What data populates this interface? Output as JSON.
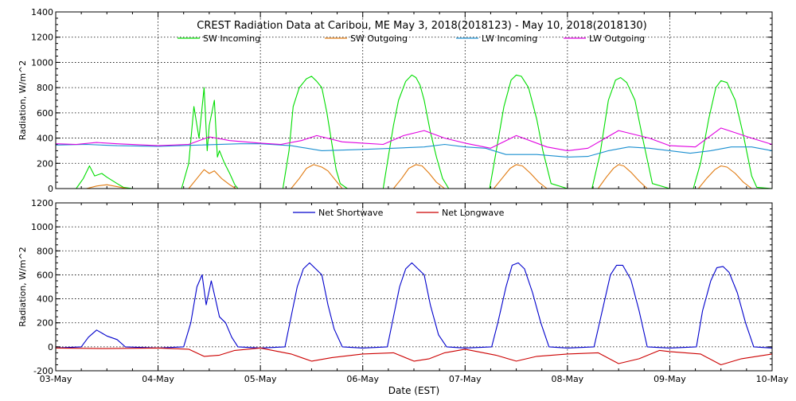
{
  "title": "CREST Radiation Data at Caribou, ME   May  3, 2018(2018123) - May 10, 2018(2018130)",
  "colors": {
    "sw_in": "#00dd00",
    "sw_out": "#e07a10",
    "lw_in": "#1a8fd0",
    "lw_out": "#e000e0",
    "net_sw": "#0000cc",
    "net_lw": "#cc0000"
  },
  "chart_data": [
    {
      "type": "line",
      "ylabel": "Radiation, W/m^2",
      "xlabel": "",
      "xlim": [
        3,
        10
      ],
      "ylim": [
        0,
        1400
      ],
      "yticks": [
        0,
        200,
        400,
        600,
        800,
        1000,
        1200,
        1400
      ],
      "grid": true,
      "legend": "top",
      "series": [
        {
          "name": "SW Incoming",
          "color_key": "sw_in",
          "x": [
            3.0,
            3.2,
            3.27,
            3.33,
            3.38,
            3.45,
            3.5,
            3.6,
            3.66,
            3.75,
            4.0,
            4.23,
            4.3,
            4.35,
            4.4,
            4.45,
            4.48,
            4.5,
            4.55,
            4.58,
            4.6,
            4.65,
            4.7,
            4.75,
            4.78,
            5.0,
            5.22,
            5.28,
            5.32,
            5.38,
            5.45,
            5.5,
            5.55,
            5.6,
            5.65,
            5.7,
            5.74,
            5.78,
            5.85,
            6.0,
            6.2,
            6.26,
            6.3,
            6.35,
            6.42,
            6.48,
            6.52,
            6.56,
            6.6,
            6.66,
            6.72,
            6.78,
            6.84,
            7.0,
            7.24,
            7.3,
            7.38,
            7.45,
            7.5,
            7.55,
            7.62,
            7.7,
            7.76,
            7.84,
            8.0,
            8.24,
            8.32,
            8.4,
            8.47,
            8.52,
            8.58,
            8.66,
            8.74,
            8.83,
            9.0,
            9.23,
            9.3,
            9.38,
            9.45,
            9.5,
            9.56,
            9.64,
            9.72,
            9.8,
            9.85,
            10.0
          ],
          "values": [
            0,
            0,
            80,
            180,
            100,
            120,
            90,
            40,
            10,
            0,
            0,
            0,
            200,
            650,
            400,
            800,
            300,
            500,
            700,
            250,
            300,
            200,
            120,
            30,
            0,
            0,
            0,
            300,
            650,
            800,
            870,
            890,
            850,
            800,
            600,
            350,
            150,
            40,
            0,
            0,
            0,
            300,
            500,
            700,
            850,
            900,
            880,
            820,
            700,
            450,
            250,
            80,
            0,
            0,
            0,
            280,
            650,
            860,
            900,
            890,
            800,
            550,
            300,
            40,
            0,
            0,
            280,
            700,
            860,
            880,
            840,
            700,
            380,
            40,
            0,
            0,
            200,
            550,
            800,
            855,
            840,
            700,
            420,
            100,
            10,
            0
          ]
        },
        {
          "name": "SW Outgoing",
          "color_key": "sw_out",
          "x": [
            3.0,
            3.3,
            3.4,
            3.5,
            3.6,
            3.7,
            4.0,
            4.3,
            4.38,
            4.45,
            4.5,
            4.55,
            4.62,
            4.7,
            4.76,
            5.0,
            5.3,
            5.38,
            5.45,
            5.52,
            5.6,
            5.66,
            5.74,
            5.8,
            6.0,
            6.3,
            6.38,
            6.45,
            6.52,
            6.58,
            6.65,
            6.72,
            6.8,
            7.0,
            7.28,
            7.36,
            7.44,
            7.5,
            7.56,
            7.64,
            7.72,
            7.8,
            8.0,
            8.3,
            8.38,
            8.45,
            8.5,
            8.55,
            8.62,
            8.7,
            8.78,
            9.0,
            9.28,
            9.36,
            9.44,
            9.5,
            9.56,
            9.64,
            9.72,
            9.8,
            10.0
          ],
          "values": [
            0,
            0,
            20,
            30,
            15,
            0,
            0,
            0,
            80,
            150,
            120,
            140,
            80,
            30,
            0,
            0,
            0,
            80,
            160,
            190,
            170,
            140,
            60,
            0,
            0,
            0,
            80,
            160,
            190,
            180,
            120,
            50,
            0,
            0,
            0,
            80,
            160,
            190,
            180,
            120,
            50,
            0,
            0,
            0,
            90,
            160,
            190,
            180,
            130,
            60,
            0,
            0,
            0,
            80,
            150,
            180,
            170,
            120,
            50,
            0,
            0
          ]
        },
        {
          "name": "LW Incoming",
          "color_key": "lw_in",
          "x": [
            3.0,
            3.3,
            3.6,
            4.0,
            4.4,
            4.8,
            5.0,
            5.3,
            5.6,
            6.0,
            6.3,
            6.6,
            6.8,
            7.0,
            7.2,
            7.4,
            7.7,
            8.0,
            8.2,
            8.4,
            8.6,
            8.8,
            9.0,
            9.2,
            9.4,
            9.6,
            9.8,
            10.0
          ],
          "values": [
            345,
            350,
            340,
            335,
            345,
            355,
            355,
            340,
            300,
            310,
            320,
            330,
            350,
            330,
            320,
            270,
            270,
            250,
            255,
            300,
            330,
            320,
            300,
            280,
            300,
            330,
            330,
            300
          ]
        },
        {
          "name": "LW Outgoing",
          "color_key": "lw_out",
          "x": [
            3.0,
            3.2,
            3.4,
            3.6,
            4.0,
            4.3,
            4.5,
            4.7,
            5.0,
            5.2,
            5.4,
            5.55,
            5.8,
            6.0,
            6.2,
            6.4,
            6.6,
            6.8,
            7.0,
            7.25,
            7.5,
            7.8,
            8.0,
            8.2,
            8.5,
            8.8,
            9.0,
            9.25,
            9.5,
            9.8,
            10.0
          ],
          "values": [
            355,
            350,
            365,
            355,
            340,
            350,
            410,
            380,
            360,
            350,
            380,
            420,
            370,
            360,
            350,
            420,
            460,
            400,
            360,
            320,
            420,
            330,
            300,
            320,
            460,
            400,
            340,
            330,
            480,
            400,
            350
          ]
        }
      ]
    },
    {
      "type": "line",
      "ylabel": "Radiation, W/m^2",
      "xlabel": "Date (EST)",
      "xlim": [
        3,
        10
      ],
      "ylim": [
        -200,
        1200
      ],
      "yticks": [
        -200,
        0,
        200,
        400,
        600,
        800,
        1000,
        1200
      ],
      "grid": true,
      "legend": "top",
      "categories": [
        "03-May",
        "04-May",
        "05-May",
        "06-May",
        "07-May",
        "08-May",
        "09-May",
        "10-May"
      ],
      "series": [
        {
          "name": "Net Shortwave",
          "color_key": "net_sw",
          "x": [
            3.0,
            3.25,
            3.32,
            3.4,
            3.5,
            3.6,
            3.68,
            4.0,
            4.25,
            4.32,
            4.38,
            4.43,
            4.47,
            4.52,
            4.56,
            4.6,
            4.66,
            4.72,
            4.78,
            5.0,
            5.24,
            5.3,
            5.36,
            5.42,
            5.48,
            5.54,
            5.6,
            5.66,
            5.72,
            5.8,
            6.0,
            6.24,
            6.3,
            6.36,
            6.42,
            6.48,
            6.54,
            6.6,
            6.66,
            6.74,
            6.82,
            7.0,
            7.26,
            7.32,
            7.4,
            7.46,
            7.52,
            7.58,
            7.66,
            7.74,
            7.82,
            8.0,
            8.26,
            8.34,
            8.42,
            8.48,
            8.54,
            8.62,
            8.7,
            8.78,
            9.0,
            9.26,
            9.32,
            9.4,
            9.46,
            9.52,
            9.58,
            9.66,
            9.74,
            9.82,
            10.0
          ],
          "values": [
            -10,
            0,
            80,
            140,
            90,
            60,
            0,
            -10,
            0,
            200,
            500,
            600,
            350,
            550,
            400,
            250,
            200,
            80,
            0,
            -10,
            0,
            250,
            500,
            650,
            700,
            650,
            600,
            350,
            150,
            0,
            -10,
            0,
            250,
            500,
            650,
            700,
            650,
            600,
            350,
            100,
            0,
            -10,
            0,
            200,
            500,
            680,
            700,
            650,
            450,
            200,
            0,
            -10,
            0,
            300,
            600,
            680,
            680,
            560,
            300,
            0,
            -10,
            0,
            300,
            550,
            660,
            670,
            620,
            450,
            200,
            0,
            -10
          ]
        },
        {
          "name": "Net Longwave",
          "color_key": "net_lw",
          "x": [
            3.0,
            3.5,
            4.0,
            4.3,
            4.45,
            4.6,
            4.75,
            5.0,
            5.3,
            5.5,
            5.7,
            6.0,
            6.3,
            6.5,
            6.65,
            6.8,
            7.0,
            7.3,
            7.5,
            7.7,
            8.0,
            8.3,
            8.5,
            8.7,
            8.9,
            9.0,
            9.3,
            9.5,
            9.7,
            10.0
          ],
          "values": [
            -10,
            -15,
            -10,
            -20,
            -80,
            -70,
            -30,
            -10,
            -60,
            -120,
            -90,
            -60,
            -50,
            -120,
            -100,
            -50,
            -20,
            -70,
            -120,
            -80,
            -60,
            -50,
            -140,
            -100,
            -30,
            -40,
            -60,
            -150,
            -100,
            -60
          ]
        }
      ]
    }
  ]
}
